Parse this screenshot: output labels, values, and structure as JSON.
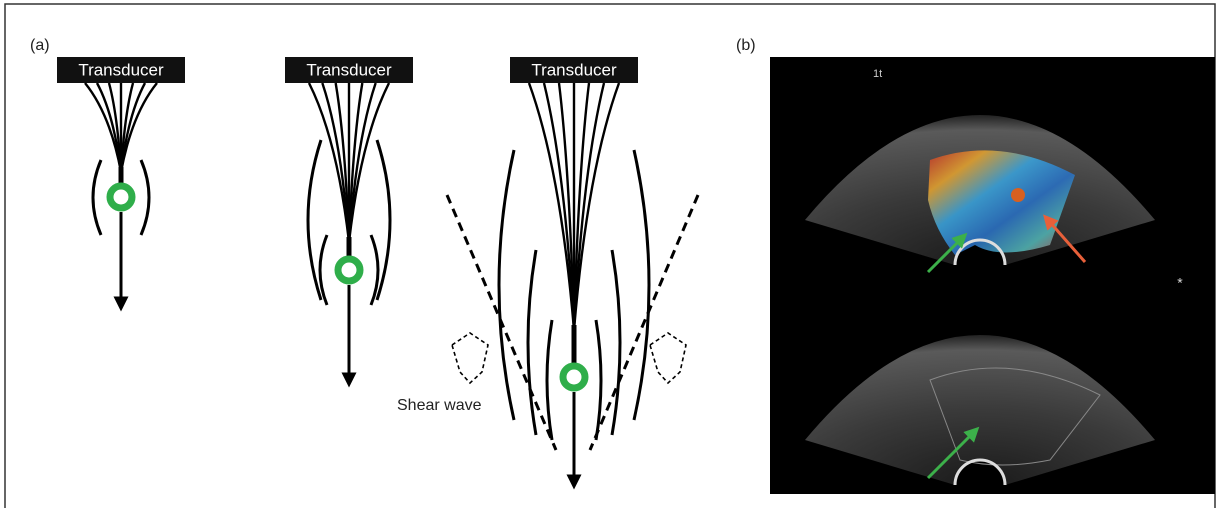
{
  "panels": {
    "a": {
      "label": "(a)",
      "transducers": [
        "Transducer",
        "Transducer",
        "Transducer"
      ],
      "shear_wave": "Shear wave"
    },
    "b": {
      "label": "(b)",
      "image_text": "1t"
    }
  }
}
